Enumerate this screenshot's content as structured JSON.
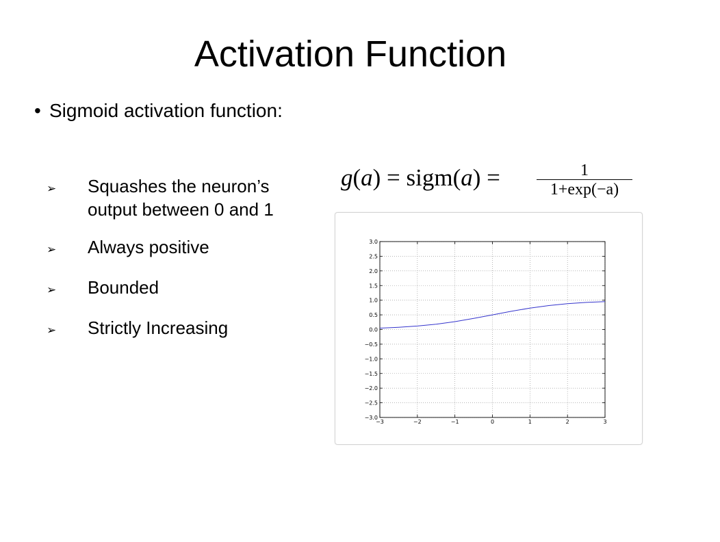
{
  "slide": {
    "title": "Activation Function",
    "bullet": "Sigmoid activation function:",
    "bullet_marker": "•",
    "sub_marker": "➢",
    "points": [
      "Squashes the neuron’s",
      "output between 0 and 1",
      "Always positive",
      "Bounded",
      "Strictly Increasing"
    ]
  },
  "formula": {
    "lhs": "g(a) = sigm(a) =",
    "numerator": "1",
    "denominator": "1+exp(−a)"
  },
  "chart_data": {
    "type": "line",
    "title": "",
    "xlabel": "",
    "ylabel": "",
    "xlim": [
      -3,
      3
    ],
    "ylim": [
      -3,
      3
    ],
    "grid": true,
    "line_color": "#3333cc",
    "x_ticks": [
      "−3",
      "−2",
      "−1",
      "0",
      "1",
      "2",
      "3"
    ],
    "y_ticks": [
      "3.0",
      "2.5",
      "2.0",
      "1.5",
      "1.0",
      "0.5",
      "0.0",
      "−0.5",
      "−1.0",
      "−1.5",
      "−2.0",
      "−2.5",
      "−3.0"
    ],
    "series": [
      {
        "x": [
          -3,
          -2.5,
          -2,
          -1.5,
          -1,
          -0.5,
          0,
          0.5,
          1,
          1.5,
          2,
          2.5,
          3
        ],
        "y": [
          0.047,
          0.076,
          0.119,
          0.182,
          0.269,
          0.378,
          0.5,
          0.622,
          0.731,
          0.818,
          0.881,
          0.924,
          0.953
        ]
      }
    ]
  }
}
